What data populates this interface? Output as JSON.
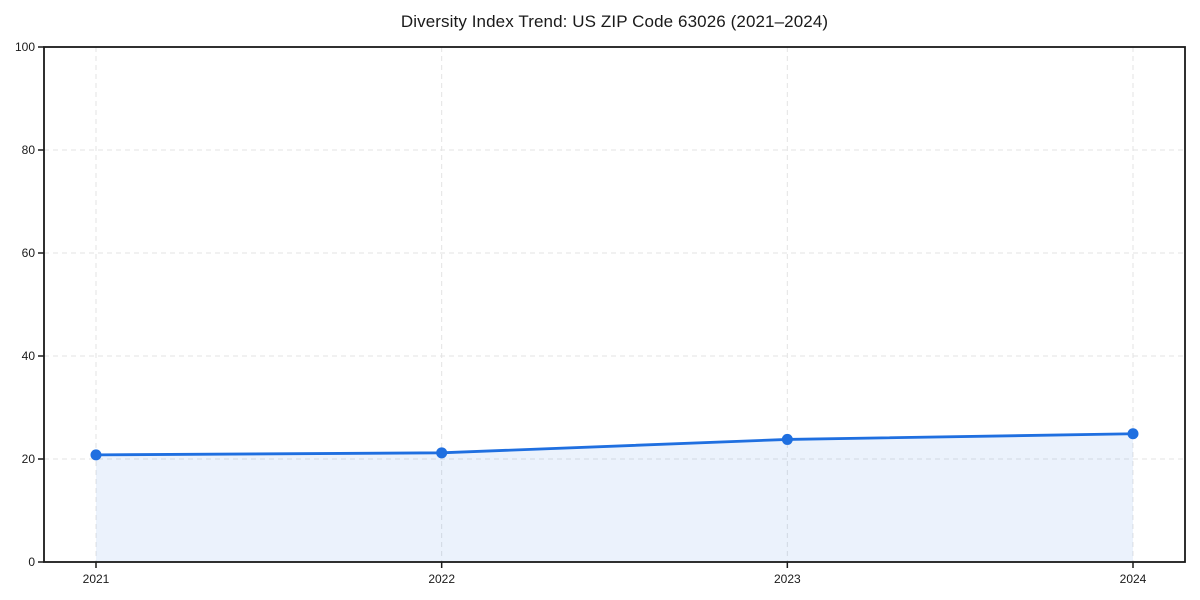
{
  "page": {
    "background_color": "#ffffff"
  },
  "chart_data": {
    "type": "area",
    "title": "Diversity Index Trend: US ZIP Code 63026 (2021–2024)",
    "categories": [
      "2021",
      "2022",
      "2023",
      "2024"
    ],
    "series": [
      {
        "name": "Diversity Index",
        "values": [
          20.8,
          21.2,
          23.8,
          24.9
        ]
      }
    ],
    "xlabel": "",
    "ylabel": "",
    "ylim": [
      0,
      100
    ],
    "yticks": [
      0,
      20,
      40,
      60,
      80,
      100
    ],
    "grid": true,
    "grid_style": "dashed",
    "legend_position": "none",
    "line_color": "#1f6fe0",
    "marker_color": "#1f6fe0",
    "fill_color": "#1f6fe0",
    "fill_opacity": 0.09,
    "grid_color": "#e3e3e3",
    "spine_color": "#1a1a1a",
    "tick_text_color": "#1a1a1a"
  }
}
